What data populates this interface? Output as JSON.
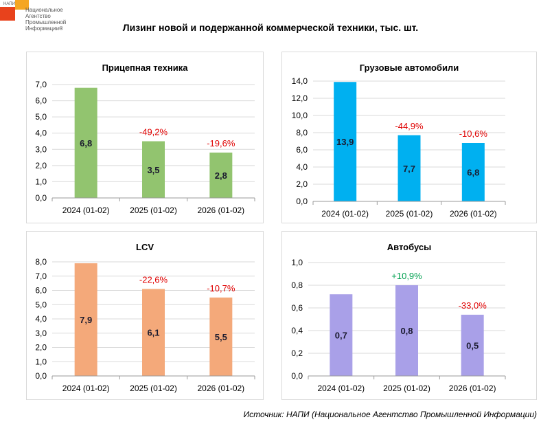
{
  "logo": {
    "abbr": "НАПИ",
    "text": "Национальное Агентство Промышленной Информации®"
  },
  "title": "Лизинг новой и подержанной коммерческой техники, тыс. шт.",
  "source": "Источник: НАПИ (Национальное Агентство Промышленной Информации)",
  "chart_data": [
    {
      "type": "bar",
      "title": "Прицепная техника",
      "categories": [
        "2024 (01-02)",
        "2025 (01-02)",
        "2026 (01-02)"
      ],
      "values": [
        6.8,
        3.5,
        2.8
      ],
      "data_labels": [
        "6,8",
        "3,5",
        "2,8"
      ],
      "change_labels": [
        "",
        "-49,2%",
        "-19,6%"
      ],
      "ylim": [
        0,
        7
      ],
      "yticks": [
        "0,0",
        "1,0",
        "2,0",
        "3,0",
        "4,0",
        "5,0",
        "6,0",
        "7,0"
      ],
      "color": "#92c46f",
      "grid": true
    },
    {
      "type": "bar",
      "title": "Грузовые автомобили",
      "categories": [
        "2024 (01-02)",
        "2025 (01-02)",
        "2026 (01-02)"
      ],
      "values": [
        13.9,
        7.7,
        6.8
      ],
      "data_labels": [
        "13,9",
        "7,7",
        "6,8"
      ],
      "change_labels": [
        "",
        "-44,9%",
        "-10,6%"
      ],
      "ylim": [
        0,
        14
      ],
      "yticks": [
        "0,0",
        "2,0",
        "4,0",
        "6,0",
        "8,0",
        "10,0",
        "12,0",
        "14,0"
      ],
      "color": "#00b0f0",
      "grid": true
    },
    {
      "type": "bar",
      "title": "LCV",
      "categories": [
        "2024 (01-02)",
        "2025 (01-02)",
        "2026 (01-02)"
      ],
      "values": [
        7.9,
        6.1,
        5.5
      ],
      "data_labels": [
        "7,9",
        "6,1",
        "5,5"
      ],
      "change_labels": [
        "",
        "-22,6%",
        "-10,7%"
      ],
      "ylim": [
        0,
        8
      ],
      "yticks": [
        "0,0",
        "1,0",
        "2,0",
        "3,0",
        "4,0",
        "5,0",
        "6,0",
        "7,0",
        "8,0"
      ],
      "color": "#f4a97a",
      "grid": true
    },
    {
      "type": "bar",
      "title": "Автобусы",
      "categories": [
        "2024 (01-02)",
        "2025 (01-02)",
        "2026 (01-02)"
      ],
      "values": [
        0.72,
        0.8,
        0.54
      ],
      "data_labels": [
        "0,7",
        "0,8",
        "0,5"
      ],
      "change_labels": [
        "",
        "+10,9%",
        "-33,0%"
      ],
      "change_colors": [
        "",
        "#00a050",
        "#e00000"
      ],
      "ylim": [
        0,
        1
      ],
      "yticks": [
        "0,0",
        "0,2",
        "0,4",
        "0,6",
        "0,8",
        "1,0"
      ],
      "color": "#a9a0e8",
      "grid": true
    }
  ]
}
